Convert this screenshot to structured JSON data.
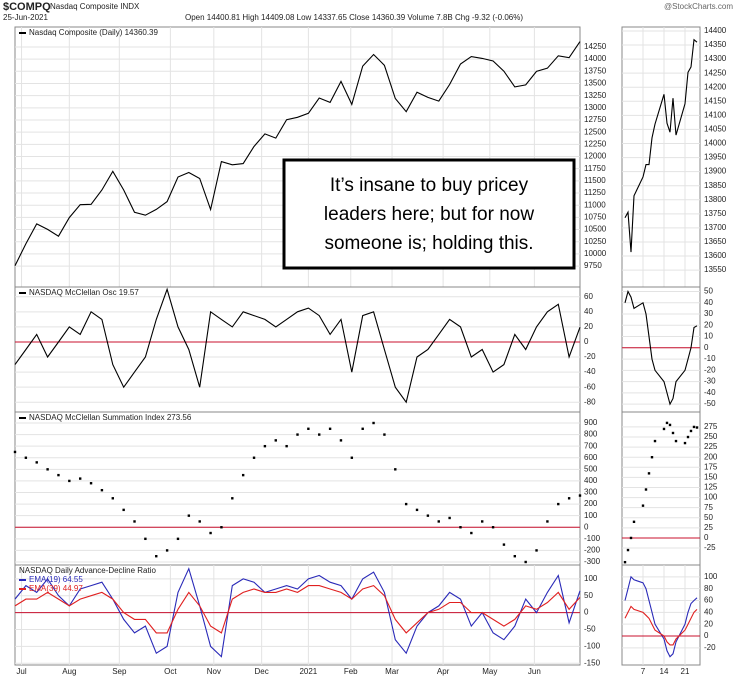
{
  "header": {
    "symbol": "$COMPQ",
    "name": "Nasdaq Composite INDX",
    "date": "25-Jun-2021",
    "quote": "Open 14400.81 High 14409.08 Low 14337.65 Close 14360.39 Volume 7.8B Chg -9.32 (-0.06%)",
    "source": "@StockCharts.com"
  },
  "annotation": [
    "It’s insane to buy pricey",
    "leaders here; but for now",
    "someone is; holding this."
  ],
  "chart_data": [
    {
      "type": "line",
      "x": [
        0,
        1,
        2,
        3,
        4,
        5,
        6,
        7,
        8,
        9,
        10,
        11,
        12,
        13,
        14,
        15,
        16,
        17,
        18,
        19,
        20,
        21,
        22,
        23,
        24,
        25,
        26,
        27,
        28,
        29,
        30,
        31,
        32,
        33,
        34,
        35,
        36,
        37,
        38,
        39,
        40,
        41,
        42,
        43,
        44,
        45,
        46,
        47,
        48,
        49,
        50,
        51,
        52
      ],
      "xlim": [
        0,
        52
      ],
      "xticks": [
        {
          "value": 0.6,
          "label": "Jul"
        },
        {
          "value": 5,
          "label": "Aug"
        },
        {
          "value": 9.6,
          "label": "Sep"
        },
        {
          "value": 14.3,
          "label": "Oct"
        },
        {
          "value": 18.3,
          "label": "Nov"
        },
        {
          "value": 22.7,
          "label": "Dec"
        },
        {
          "value": 27,
          "label": "2021"
        },
        {
          "value": 30.9,
          "label": "Feb"
        },
        {
          "value": 34.7,
          "label": "Mar"
        },
        {
          "value": 39.4,
          "label": "Apr"
        },
        {
          "value": 43.7,
          "label": "May"
        },
        {
          "value": 47.8,
          "label": "Jun"
        }
      ],
      "series": [
        {
          "name": "Nasdaq Composite (Daily) 14360.39",
          "color": "#000000",
          "values": [
            9757,
            10208,
            10617,
            10503,
            10363,
            10745,
            11011,
            11019,
            11312,
            11696,
            11313,
            10854,
            10794,
            10914,
            11075,
            11580,
            11672,
            11548,
            10911,
            11895,
            11829,
            11855,
            12206,
            12464,
            12378,
            12756,
            12805,
            12888,
            13202,
            13112,
            13543,
            13070,
            13856,
            14095,
            13874,
            13192,
            12920,
            13320,
            13215,
            13139,
            13480,
            13900,
            14052,
            14016,
            13962,
            13752,
            13430,
            13471,
            13749,
            13814,
            14069,
            14030,
            14360
          ]
        }
      ],
      "ylim": [
        9320,
        14660
      ],
      "yticks": [
        9750,
        10000,
        10250,
        10500,
        10750,
        11000,
        11250,
        11500,
        11750,
        12000,
        12250,
        12500,
        12750,
        13000,
        13250,
        13500,
        13750,
        14000,
        14250
      ]
    },
    {
      "type": "line",
      "x": [
        0,
        1,
        2,
        3,
        4,
        5,
        6,
        7,
        8,
        9,
        10,
        11,
        12,
        13,
        14,
        15,
        16,
        17,
        18,
        19,
        20,
        21,
        22,
        23,
        24,
        25,
        26,
        27,
        28,
        29,
        30,
        31,
        32,
        33,
        34,
        35,
        36,
        37,
        38,
        39,
        40,
        41,
        42,
        43,
        44,
        45,
        46,
        47,
        48,
        49,
        50,
        51,
        52
      ],
      "xlim": [
        0,
        52
      ],
      "series": [
        {
          "name": "NASDAQ McClellan Osc 19.57",
          "color": "#000000",
          "values": [
            -30,
            -10,
            10,
            -20,
            0,
            20,
            10,
            40,
            30,
            -30,
            -60,
            -40,
            -20,
            30,
            70,
            20,
            -10,
            -60,
            40,
            30,
            20,
            40,
            35,
            30,
            20,
            30,
            40,
            45,
            35,
            10,
            30,
            -40,
            35,
            40,
            -10,
            -60,
            -80,
            -20,
            -10,
            10,
            30,
            20,
            -20,
            -10,
            -40,
            -30,
            10,
            -10,
            20,
            40,
            50,
            -20,
            19.57
          ]
        }
      ],
      "ylim": [
        -93,
        73
      ],
      "yticks": [
        -80,
        -60,
        -40,
        -20,
        0,
        20,
        40,
        60
      ],
      "ref_line": {
        "value": 0,
        "color": "#c8102e"
      }
    },
    {
      "type": "dot",
      "x": [
        0,
        1,
        2,
        3,
        4,
        5,
        6,
        7,
        8,
        9,
        10,
        11,
        12,
        13,
        14,
        15,
        16,
        17,
        18,
        19,
        20,
        21,
        22,
        23,
        24,
        25,
        26,
        27,
        28,
        29,
        30,
        31,
        32,
        33,
        34,
        35,
        36,
        37,
        38,
        39,
        40,
        41,
        42,
        43,
        44,
        45,
        46,
        47,
        48,
        49,
        50,
        51,
        52
      ],
      "xlim": [
        0,
        52
      ],
      "series": [
        {
          "name": "NASDAQ McClellan Summation Index 273.56",
          "color": "#000000",
          "values": [
            650,
            600,
            560,
            500,
            450,
            400,
            420,
            380,
            320,
            250,
            150,
            50,
            -100,
            -250,
            -200,
            -100,
            100,
            50,
            -50,
            0,
            250,
            450,
            600,
            700,
            750,
            700,
            800,
            850,
            800,
            850,
            750,
            600,
            850,
            900,
            800,
            500,
            200,
            150,
            100,
            50,
            80,
            0,
            -50,
            50,
            0,
            -150,
            -250,
            -300,
            -200,
            50,
            200,
            250,
            273.56
          ]
        }
      ],
      "ylim": [
        -326,
        995
      ],
      "yticks": [
        -300,
        -200,
        -100,
        0,
        100,
        200,
        300,
        400,
        500,
        600,
        700,
        800,
        900
      ],
      "ref_line": {
        "value": 0,
        "color": "#c8102e"
      }
    },
    {
      "type": "line",
      "title": "NASDAQ Daily Advance-Decline Ratio",
      "x": [
        0,
        1,
        2,
        3,
        4,
        5,
        6,
        7,
        8,
        9,
        10,
        11,
        12,
        13,
        14,
        15,
        16,
        17,
        18,
        19,
        20,
        21,
        22,
        23,
        24,
        25,
        26,
        27,
        28,
        29,
        30,
        31,
        32,
        33,
        34,
        35,
        36,
        37,
        38,
        39,
        40,
        41,
        42,
        43,
        44,
        45,
        46,
        47,
        48,
        49,
        50,
        51,
        52
      ],
      "xlim": [
        0,
        52
      ],
      "xticks": [
        {
          "value": 0.6,
          "label": "Jul"
        },
        {
          "value": 5,
          "label": "Aug"
        },
        {
          "value": 9.6,
          "label": "Sep"
        },
        {
          "value": 14.3,
          "label": "Oct"
        },
        {
          "value": 18.3,
          "label": "Nov"
        },
        {
          "value": 22.7,
          "label": "Dec"
        },
        {
          "value": 27,
          "label": "2021"
        },
        {
          "value": 30.9,
          "label": "Feb"
        },
        {
          "value": 34.7,
          "label": "Mar"
        },
        {
          "value": 39.4,
          "label": "Apr"
        },
        {
          "value": 43.7,
          "label": "May"
        },
        {
          "value": 47.8,
          "label": "Jun"
        }
      ],
      "series": [
        {
          "name": "EMA(19) 64.55",
          "color": "#2a2ab8",
          "values": [
            40,
            80,
            60,
            100,
            50,
            20,
            70,
            80,
            90,
            40,
            -20,
            -60,
            -40,
            -120,
            -100,
            60,
            130,
            20,
            -100,
            -130,
            80,
            100,
            90,
            60,
            70,
            80,
            70,
            100,
            110,
            90,
            80,
            40,
            100,
            120,
            60,
            -80,
            -120,
            -40,
            0,
            20,
            60,
            40,
            -40,
            0,
            -60,
            -80,
            -40,
            40,
            0,
            60,
            110,
            -30,
            64.55
          ]
        },
        {
          "name": "EMA(39) 44.97",
          "color": "#e02020",
          "values": [
            20,
            40,
            40,
            60,
            40,
            20,
            40,
            50,
            60,
            40,
            0,
            -20,
            -20,
            -60,
            -60,
            10,
            60,
            20,
            -40,
            -60,
            40,
            60,
            70,
            60,
            60,
            70,
            60,
            80,
            80,
            70,
            60,
            40,
            70,
            80,
            50,
            -20,
            -60,
            -30,
            0,
            10,
            30,
            30,
            0,
            0,
            -20,
            -40,
            -20,
            20,
            10,
            30,
            60,
            10,
            44.97
          ]
        }
      ],
      "ylim": [
        -155,
        141
      ],
      "yticks": [
        -150,
        -100,
        -50,
        0,
        50,
        100
      ],
      "ref_line": {
        "value": 0,
        "color": "#c8102e"
      }
    },
    {
      "type": "line",
      "x": [
        1,
        2,
        3,
        4,
        7,
        8,
        9,
        10,
        11,
        14,
        15,
        16,
        17,
        18,
        21,
        22,
        23,
        24,
        25
      ],
      "xlim": [
        0,
        26
      ],
      "xticks": [
        7,
        14,
        21
      ],
      "series": [
        {
          "color": "#000000",
          "values": [
            13736,
            13756,
            13614,
            13814,
            13881,
            13925,
            13925,
            14020,
            14069,
            14175,
            14072,
            14040,
            14161,
            14030,
            14141,
            14253,
            14272,
            14369,
            14360
          ]
        }
      ],
      "ylim": [
        13490,
        14414
      ],
      "yticks": [
        13550,
        13600,
        13650,
        13700,
        13750,
        13800,
        13850,
        13900,
        13950,
        14000,
        14050,
        14100,
        14150,
        14200,
        14250,
        14300,
        14350,
        14400
      ]
    },
    {
      "type": "line",
      "x": [
        1,
        2,
        3,
        4,
        7,
        8,
        9,
        10,
        11,
        14,
        15,
        16,
        17,
        18,
        21,
        22,
        23,
        24,
        25
      ],
      "xlim": [
        0,
        26
      ],
      "series": [
        {
          "color": "#000000",
          "values": [
            40,
            50,
            45,
            35,
            40,
            30,
            10,
            -10,
            -20,
            -30,
            -40,
            -50,
            -45,
            -30,
            -20,
            -10,
            0,
            18,
            19.57
          ]
        }
      ],
      "ylim": [
        -57,
        54
      ],
      "yticks": [
        -50,
        -40,
        -30,
        -20,
        -10,
        0,
        10,
        20,
        30,
        40,
        50
      ],
      "ref_line": {
        "value": 0,
        "color": "#c8102e"
      }
    },
    {
      "type": "dot",
      "x": [
        1,
        2,
        3,
        4,
        7,
        8,
        9,
        10,
        11,
        14,
        15,
        16,
        17,
        18,
        21,
        22,
        23,
        24,
        25
      ],
      "xlim": [
        0,
        26
      ],
      "series": [
        {
          "color": "#000000",
          "values": [
            -60,
            -30,
            0,
            40,
            80,
            120,
            160,
            200,
            240,
            270,
            285,
            280,
            260,
            240,
            235,
            250,
            265,
            275,
            273.56
          ]
        }
      ],
      "ylim": [
        -67,
        312
      ],
      "yticks": [
        -25,
        0,
        25,
        50,
        75,
        100,
        125,
        150,
        175,
        200,
        225,
        250,
        275
      ],
      "ref_line": {
        "value": 0,
        "color": "#c8102e"
      }
    },
    {
      "type": "line",
      "x": [
        1,
        2,
        3,
        4,
        7,
        8,
        9,
        10,
        11,
        14,
        15,
        16,
        17,
        18,
        21,
        22,
        23,
        24,
        25
      ],
      "xlim": [
        0,
        26
      ],
      "xticks": [
        7,
        14,
        21
      ],
      "series": [
        {
          "color": "#2a2ab8",
          "values": [
            60,
            80,
            100,
            95,
            90,
            80,
            60,
            40,
            20,
            -5,
            -25,
            -35,
            -30,
            -10,
            20,
            40,
            55,
            60,
            64.55
          ]
        },
        {
          "color": "#e02020",
          "values": [
            30,
            40,
            50,
            45,
            40,
            35,
            30,
            20,
            10,
            0,
            -10,
            -15,
            -15,
            -5,
            10,
            20,
            30,
            40,
            44.97
          ]
        }
      ],
      "ylim": [
        -49,
        120
      ],
      "yticks": [
        -20,
        0,
        20,
        40,
        60,
        80,
        100
      ],
      "ref_line": {
        "value": 0,
        "color": "#c8102e"
      }
    }
  ]
}
